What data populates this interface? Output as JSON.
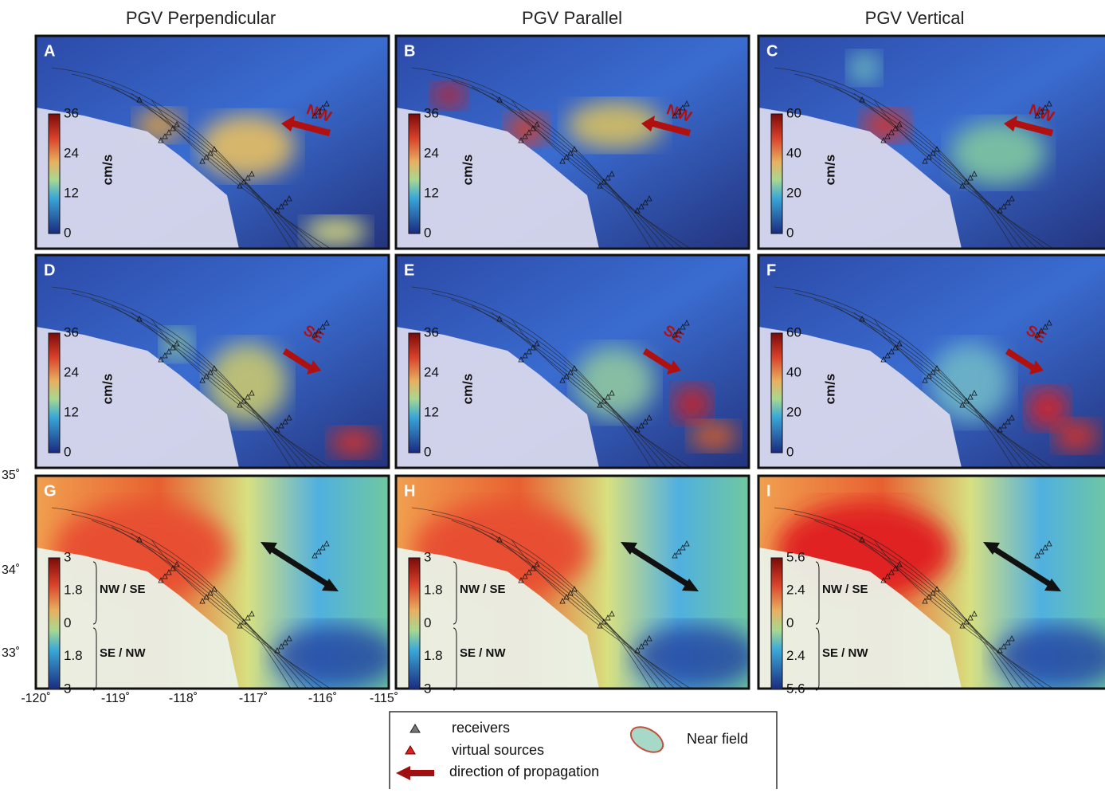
{
  "column_titles": [
    "PGV Perpendicular",
    "PGV Parallel",
    "PGV Vertical"
  ],
  "panels": [
    {
      "letter": "A",
      "ticks": [
        36,
        24,
        12,
        0
      ],
      "unit": "cm/s",
      "arrow": "NW"
    },
    {
      "letter": "B",
      "ticks": [
        36,
        24,
        12,
        0
      ],
      "unit": "cm/s",
      "arrow": "NW"
    },
    {
      "letter": "C",
      "ticks": [
        60,
        40,
        20,
        0
      ],
      "unit": "cm/s",
      "arrow": "NW"
    },
    {
      "letter": "D",
      "ticks": [
        36,
        24,
        12,
        0
      ],
      "unit": "cm/s",
      "arrow": "SE"
    },
    {
      "letter": "E",
      "ticks": [
        36,
        24,
        12,
        0
      ],
      "unit": "cm/s",
      "arrow": "SE"
    },
    {
      "letter": "F",
      "ticks": [
        60,
        40,
        20,
        0
      ],
      "unit": "cm/s",
      "arrow": "SE"
    },
    {
      "letter": "G",
      "ticks": [
        3,
        1.8,
        0,
        1.8,
        3
      ],
      "upper": "NW / SE",
      "lower": "SE / NW"
    },
    {
      "letter": "H",
      "ticks": [
        3,
        1.8,
        0,
        1.8,
        3
      ],
      "upper": "NW / SE",
      "lower": "SE / NW"
    },
    {
      "letter": "I",
      "ticks": [
        5.6,
        2.4,
        0,
        2.4,
        5.6
      ],
      "upper": "NW / SE",
      "lower": "SE / NW"
    }
  ],
  "latitude_labels": [
    "35˚",
    "34˚",
    "33˚"
  ],
  "longitude_labels": [
    "-120˚",
    "-119˚",
    "-118˚",
    "-117˚",
    "-116˚",
    "-115˚"
  ],
  "legend": {
    "receivers": "receivers",
    "sources": "virtual sources",
    "direction": "direction of propagation",
    "near_field": "Near field"
  }
}
